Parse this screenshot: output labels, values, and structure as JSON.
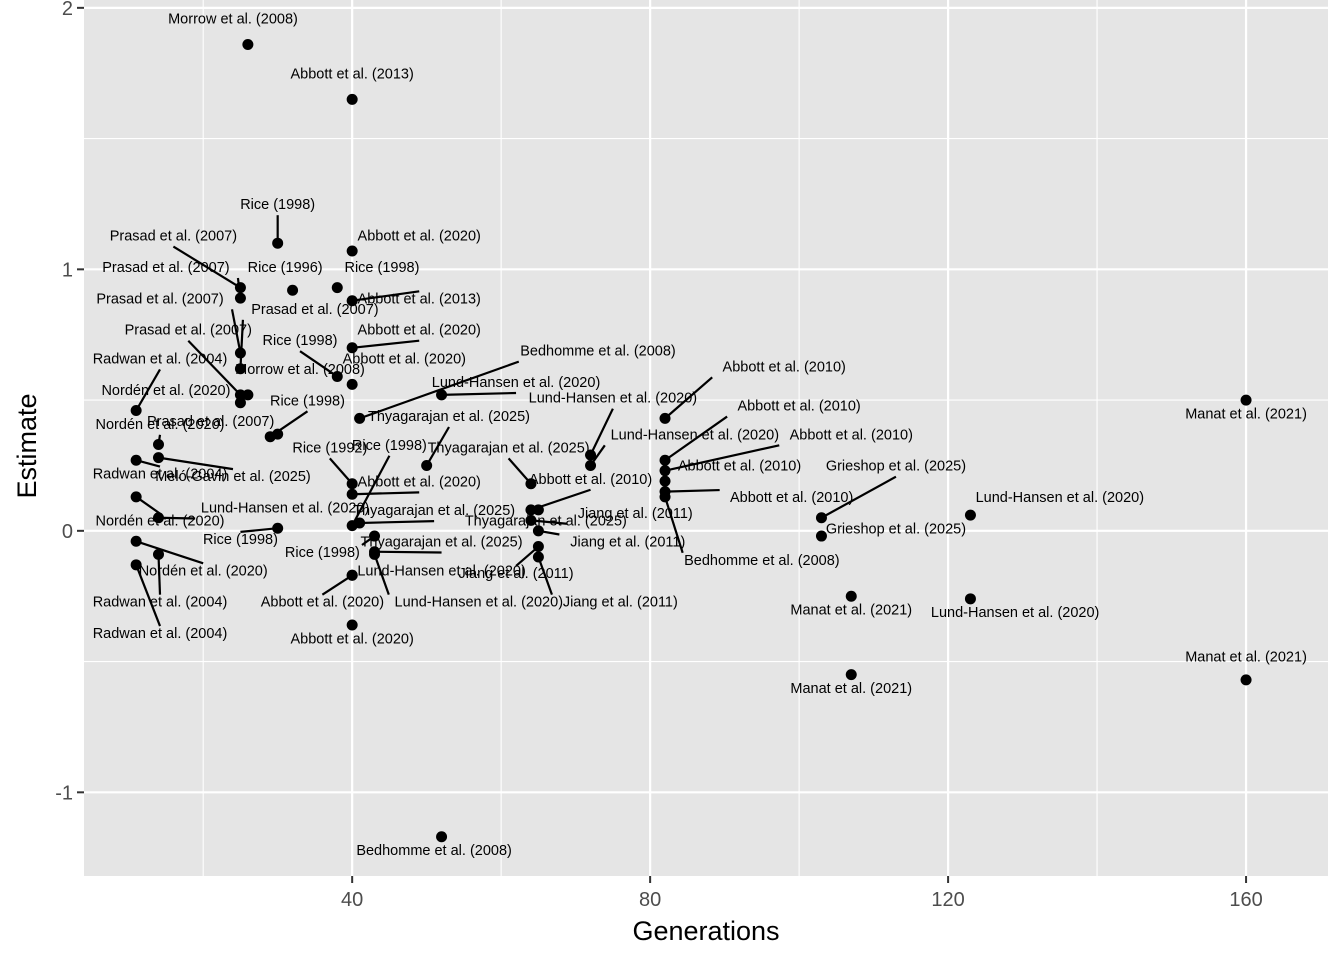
{
  "chart_data": {
    "type": "scatter",
    "title": "",
    "xlabel": "Generations",
    "ylabel": "Estimate",
    "xlim": [
      4,
      171
    ],
    "ylim": [
      -1.32,
      2.03
    ],
    "xticks": [
      40,
      80,
      120,
      160
    ],
    "xticks_minor": [
      20,
      60,
      100,
      140
    ],
    "yticks": [
      -1,
      0,
      1,
      2
    ],
    "yticks_minor": [
      -0.5,
      0.5,
      1.5
    ],
    "grid": true,
    "colors": {
      "panel": "#e5e5e5",
      "grid": "#ffffff",
      "point": "#000000",
      "tick": "#4d4d4d"
    },
    "points": [
      {
        "x": 26,
        "y": 1.86,
        "label": "Morrow et al. (2008)",
        "lx": 24,
        "ly": 1.94,
        "lead": false
      },
      {
        "x": 40,
        "y": 1.65,
        "label": "Abbott et al. (2013)",
        "lx": 40,
        "ly": 1.73,
        "lead": false
      },
      {
        "x": 30,
        "y": 1.1,
        "label": "Rice (1998)",
        "lx": 30,
        "ly": 1.23,
        "lead": true
      },
      {
        "x": 40,
        "y": 1.07,
        "label": "Abbott et al. (2020)",
        "lx": 49,
        "ly": 1.11,
        "lead": false
      },
      {
        "x": 25,
        "y": 0.93,
        "label": "Prasad et al. (2007)",
        "lx": 16,
        "ly": 1.11,
        "lead": true
      },
      {
        "x": 25,
        "y": 0.89,
        "label": "Prasad et al. (2007)",
        "lx": 15,
        "ly": 0.99,
        "lead": true
      },
      {
        "x": 32,
        "y": 0.92,
        "label": "Rice (1996)",
        "lx": 31,
        "ly": 0.99,
        "lead": false
      },
      {
        "x": 38,
        "y": 0.93,
        "label": "Rice (1998)",
        "lx": 44,
        "ly": 0.99,
        "lead": false
      },
      {
        "x": 40,
        "y": 0.88,
        "label": "Abbott et al. (2013)",
        "lx": 49,
        "ly": 0.87,
        "lead": true
      },
      {
        "x": 25,
        "y": 0.68,
        "label": "Prasad et al. (2007)",
        "lx": 12,
        "ly": 0.87,
        "lead": true
      },
      {
        "x": 25,
        "y": 0.62,
        "label": "Prasad et al. (2007)",
        "lx": 35,
        "ly": 0.83,
        "lead": true
      },
      {
        "x": 40,
        "y": 0.7,
        "label": "Abbott et al. (2020)",
        "lx": 49,
        "ly": 0.75,
        "lead": true
      },
      {
        "x": 25,
        "y": 0.52,
        "label": "Prasad et al. (2007)",
        "lx": 18,
        "ly": 0.75,
        "lead": true
      },
      {
        "x": 38,
        "y": 0.59,
        "label": "Rice (1998)",
        "lx": 33,
        "ly": 0.71,
        "lead": true
      },
      {
        "x": 40,
        "y": 0.56,
        "label": "Abbott et al. (2020)",
        "lx": 47,
        "ly": 0.64,
        "lead": false
      },
      {
        "x": 26,
        "y": 0.52,
        "label": "Morrow et al. (2008)",
        "lx": 33,
        "ly": 0.6,
        "lead": false
      },
      {
        "x": 11,
        "y": 0.46,
        "label": "Radwan et al. (2004)",
        "lx": 13,
        "ly": 0.64,
        "lead": true
      },
      {
        "x": 25,
        "y": 0.49,
        "label": "Nordén et al. (2020)",
        "lx": 15,
        "ly": 0.52,
        "lead": true
      },
      {
        "x": 41,
        "y": 0.43,
        "label": "Bedhomme et al. (2008)",
        "lx": 73,
        "ly": 0.67,
        "lead": true
      },
      {
        "x": 52,
        "y": 0.52,
        "label": "Lund-Hansen et al. (2020)",
        "lx": 62,
        "ly": 0.55,
        "lead": true
      },
      {
        "x": 29,
        "y": 0.36,
        "label": "Rice (1998)",
        "lx": 34,
        "ly": 0.48,
        "lead": true
      },
      {
        "x": 30,
        "y": 0.37,
        "label": "Prasad et al. (2007)",
        "lx": 21,
        "ly": 0.4,
        "lead": false
      },
      {
        "x": 14,
        "y": 0.33,
        "label": "Nordén et al. (2020)",
        "lx": 13,
        "ly": 0.39,
        "lead": true
      },
      {
        "x": 50,
        "y": 0.25,
        "label": "Thyagarajan et al. (2025)",
        "lx": 53,
        "ly": 0.42,
        "lead": true
      },
      {
        "x": 11,
        "y": 0.27,
        "label": "Radwan et al. (2004)",
        "lx": 11,
        "ly": 0.2,
        "lead": true
      },
      {
        "x": 14,
        "y": 0.28,
        "label": "Meló-Gavin et al. (2025)",
        "lx": 24,
        "ly": 0.19,
        "lead": true
      },
      {
        "x": 40,
        "y": 0.18,
        "label": "Rice (1992)",
        "lx": 37,
        "ly": 0.3,
        "lead": true
      },
      {
        "x": 40,
        "y": 0.14,
        "label": "Abbott et al. (2020)",
        "lx": 49,
        "ly": 0.17,
        "lead": true
      },
      {
        "x": 40,
        "y": 0.02,
        "label": "Rice (1998)",
        "lx": 45,
        "ly": 0.31,
        "lead": true
      },
      {
        "x": 11,
        "y": 0.13,
        "label": "Nordén et al. (2020)",
        "lx": 12,
        "ly": 0.02,
        "lead": true
      },
      {
        "x": 14,
        "y": 0.05,
        "label": "Lund-Hansen et al. (2020)",
        "lx": 31,
        "ly": 0.07,
        "lead": true
      },
      {
        "x": 30,
        "y": 0.01,
        "label": "Rice (1998)",
        "lx": 25,
        "ly": -0.05,
        "lead": true
      },
      {
        "x": 41,
        "y": 0.03,
        "label": "Thyagarajan et al. (2025)",
        "lx": 51,
        "ly": 0.06,
        "lead": true
      },
      {
        "x": 43,
        "y": -0.02,
        "label": "Rice (1998)",
        "lx": 36,
        "ly": -0.1,
        "lead": true
      },
      {
        "x": 43,
        "y": -0.08,
        "label": "Thyagarajan et al. (2025)",
        "lx": 52,
        "ly": -0.06,
        "lead": true
      },
      {
        "x": 64,
        "y": 0.18,
        "label": "Thyagarajan et al. (2025)",
        "lx": 61,
        "ly": 0.3,
        "lead": true
      },
      {
        "x": 64,
        "y": 0.08,
        "label": "Abbott et al. (2010)",
        "lx": 72,
        "ly": 0.18,
        "lead": true
      },
      {
        "x": 64,
        "y": 0.04,
        "label": "Jiang et al. (2011)",
        "lx": 78,
        "ly": 0.05,
        "lead": true
      },
      {
        "x": 65,
        "y": 0.08,
        "label": "Thyagarajan et al. (2025)",
        "lx": 66,
        "ly": 0.02,
        "lead": false
      },
      {
        "x": 65,
        "y": 0.0,
        "label": "Jiang et al. (2011)",
        "lx": 77,
        "ly": -0.06,
        "lead": true
      },
      {
        "x": 65,
        "y": -0.06,
        "label": "Jiang et al. (2011)",
        "lx": 62,
        "ly": -0.18,
        "lead": true
      },
      {
        "x": 65,
        "y": -0.1,
        "label": "Jiang et al. (2011)",
        "lx": 76,
        "ly": -0.29,
        "lead": true
      },
      {
        "x": 40,
        "y": -0.17,
        "label": "Lund-Hansen et al. (2020)",
        "lx": 52,
        "ly": -0.17,
        "lead": false
      },
      {
        "x": 40,
        "y": -0.17,
        "label": "Abbott et al. (2020)",
        "lx": 36,
        "ly": -0.29,
        "lead": true
      },
      {
        "x": 43,
        "y": -0.09,
        "label": "Lund-Hansen et al. (2020)",
        "lx": 57,
        "ly": -0.29,
        "lead": true
      },
      {
        "x": 40,
        "y": -0.36,
        "label": "Abbott et al. (2020)",
        "lx": 40,
        "ly": -0.43,
        "lead": false
      },
      {
        "x": 11,
        "y": -0.04,
        "label": "Nordén et al. (2020)",
        "lx": 20,
        "ly": -0.17,
        "lead": true
      },
      {
        "x": 14,
        "y": -0.09,
        "label": "Radwan et al. (2004)",
        "lx": 14,
        "ly": -0.29,
        "lead": true
      },
      {
        "x": 11,
        "y": -0.13,
        "label": "Radwan et al. (2004)",
        "lx": 14,
        "ly": -0.41,
        "lead": true
      },
      {
        "x": 52,
        "y": -1.17,
        "label": "Bedhomme et al. (2008)",
        "lx": 51,
        "ly": -1.24,
        "lead": false
      },
      {
        "x": 72,
        "y": 0.29,
        "label": "Lund-Hansen et al. (2020)",
        "lx": 75,
        "ly": 0.49,
        "lead": true
      },
      {
        "x": 72,
        "y": 0.25,
        "label": "Lund-Hansen et al. (2020)",
        "lx": 86,
        "ly": 0.35,
        "lead": true
      },
      {
        "x": 82,
        "y": 0.43,
        "label": "Abbott et al. (2010)",
        "lx": 98,
        "ly": 0.61,
        "lead": true
      },
      {
        "x": 82,
        "y": 0.27,
        "label": "Abbott et al. (2010)",
        "lx": 100,
        "ly": 0.46,
        "lead": true
      },
      {
        "x": 82,
        "y": 0.23,
        "label": "Abbott et al. (2010)",
        "lx": 107,
        "ly": 0.35,
        "lead": true
      },
      {
        "x": 82,
        "y": 0.19,
        "label": "Abbott et al. (2010)",
        "lx": 92,
        "ly": 0.23,
        "lead": true
      },
      {
        "x": 82,
        "y": 0.15,
        "label": "Abbott et al. (2010)",
        "lx": 99,
        "ly": 0.11,
        "lead": true
      },
      {
        "x": 82,
        "y": 0.13,
        "label": "Bedhomme et al. (2008)",
        "lx": 95,
        "ly": -0.13,
        "lead": true
      },
      {
        "x": 103,
        "y": 0.05,
        "label": "Grieshop et al. (2025)",
        "lx": 113,
        "ly": 0.23,
        "lead": true
      },
      {
        "x": 103,
        "y": -0.02,
        "label": "Grieshop et al. (2025)",
        "lx": 113,
        "ly": -0.01,
        "lead": false
      },
      {
        "x": 107,
        "y": -0.25,
        "label": "Manat et al. (2021)",
        "lx": 107,
        "ly": -0.32,
        "lead": false
      },
      {
        "x": 107,
        "y": -0.55,
        "label": "Manat et al. (2021)",
        "lx": 107,
        "ly": -0.62,
        "lead": false
      },
      {
        "x": 123,
        "y": 0.06,
        "label": "Lund-Hansen et al. (2020)",
        "lx": 135,
        "ly": 0.11,
        "lead": false
      },
      {
        "x": 123,
        "y": -0.26,
        "label": "Lund-Hansen et al. (2020)",
        "lx": 129,
        "ly": -0.33,
        "lead": false
      },
      {
        "x": 160,
        "y": 0.5,
        "label": "Manat et al. (2021)",
        "lx": 160,
        "ly": 0.43,
        "lead": false
      },
      {
        "x": 160,
        "y": -0.57,
        "label": "Manat et al. (2021)",
        "lx": 160,
        "ly": -0.5,
        "lead": false
      }
    ]
  }
}
